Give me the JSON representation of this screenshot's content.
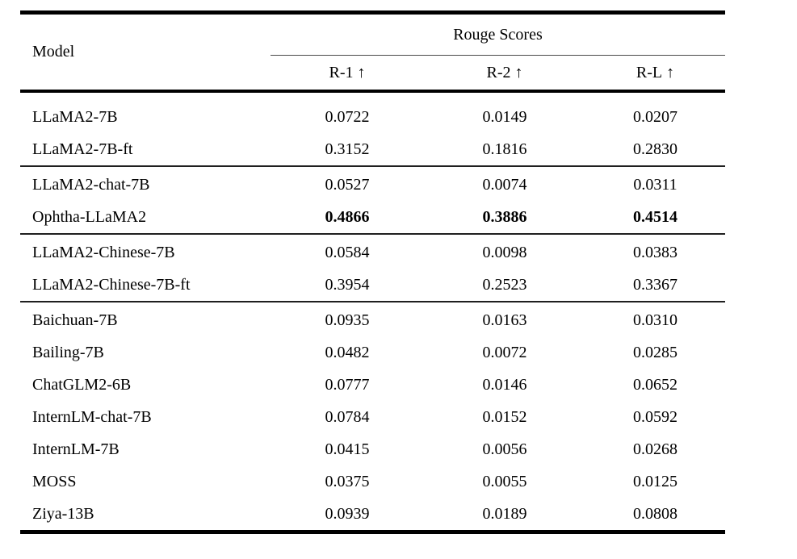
{
  "colors": {
    "background": "#ffffff",
    "text": "#000000",
    "heavy_rule": "#000000",
    "light_rule": "#4a4a4a"
  },
  "table": {
    "header": {
      "model_label": "Model",
      "group_label": "Rouge Scores",
      "columns": [
        {
          "label": "R-1",
          "arrow": "↑"
        },
        {
          "label": "R-2",
          "arrow": "↑"
        },
        {
          "label": "R-L",
          "arrow": "↑"
        }
      ]
    },
    "groups": [
      {
        "rows": [
          {
            "model": "LLaMA2-7B",
            "r1": "0.0722",
            "r2": "0.0149",
            "rl": "0.0207"
          },
          {
            "model": "LLaMA2-7B-ft",
            "r1": "0.3152",
            "r2": "0.1816",
            "rl": "0.2830"
          }
        ]
      },
      {
        "rows": [
          {
            "model": "LLaMA2-chat-7B",
            "r1": "0.0527",
            "r2": "0.0074",
            "rl": "0.0311"
          },
          {
            "model": "Ophtha-LLaMA2",
            "r1": "0.4866",
            "r2": "0.3886",
            "rl": "0.4514"
          }
        ]
      },
      {
        "rows": [
          {
            "model": "LLaMA2-Chinese-7B",
            "r1": "0.0584",
            "r2": "0.0098",
            "rl": "0.0383"
          },
          {
            "model": "LLaMA2-Chinese-7B-ft",
            "r1": "0.3954",
            "r2": "0.2523",
            "rl": "0.3367"
          }
        ]
      },
      {
        "rows": [
          {
            "model": "Baichuan-7B",
            "r1": "0.0935",
            "r2": "0.0163",
            "rl": "0.0310"
          },
          {
            "model": "Bailing-7B",
            "r1": "0.0482",
            "r2": "0.0072",
            "rl": "0.0285"
          },
          {
            "model": "ChatGLM2-6B",
            "r1": "0.0777",
            "r2": "0.0146",
            "rl": "0.0652"
          },
          {
            "model": "InternLM-chat-7B",
            "r1": "0.0784",
            "r2": "0.0152",
            "rl": "0.0592"
          },
          {
            "model": "InternLM-7B",
            "r1": "0.0415",
            "r2": "0.0056",
            "rl": "0.0268"
          },
          {
            "model": "MOSS",
            "r1": "0.0375",
            "r2": "0.0055",
            "rl": "0.0125"
          },
          {
            "model": "Ziya-13B",
            "r1": "0.0939",
            "r2": "0.0189",
            "rl": "0.0808"
          }
        ]
      }
    ],
    "bold_values_row": "Ophtha-LLaMA2"
  },
  "chart_data": {
    "type": "table",
    "title": "Rouge Scores",
    "columns": [
      "Model",
      "R-1 ↑",
      "R-2 ↑",
      "R-L ↑"
    ],
    "rows": [
      [
        "LLaMA2-7B",
        0.0722,
        0.0149,
        0.0207
      ],
      [
        "LLaMA2-7B-ft",
        0.3152,
        0.1816,
        0.283
      ],
      [
        "LLaMA2-chat-7B",
        0.0527,
        0.0074,
        0.0311
      ],
      [
        "Ophtha-LLaMA2",
        0.4866,
        0.3886,
        0.4514
      ],
      [
        "LLaMA2-Chinese-7B",
        0.0584,
        0.0098,
        0.0383
      ],
      [
        "LLaMA2-Chinese-7B-ft",
        0.3954,
        0.2523,
        0.3367
      ],
      [
        "Baichuan-7B",
        0.0935,
        0.0163,
        0.031
      ],
      [
        "Bailing-7B",
        0.0482,
        0.0072,
        0.0285
      ],
      [
        "ChatGLM2-6B",
        0.0777,
        0.0146,
        0.0652
      ],
      [
        "InternLM-chat-7B",
        0.0784,
        0.0152,
        0.0592
      ],
      [
        "InternLM-7B",
        0.0415,
        0.0056,
        0.0268
      ],
      [
        "MOSS",
        0.0375,
        0.0055,
        0.0125
      ],
      [
        "Ziya-13B",
        0.0939,
        0.0189,
        0.0808
      ]
    ],
    "bold_row_index": 3
  }
}
